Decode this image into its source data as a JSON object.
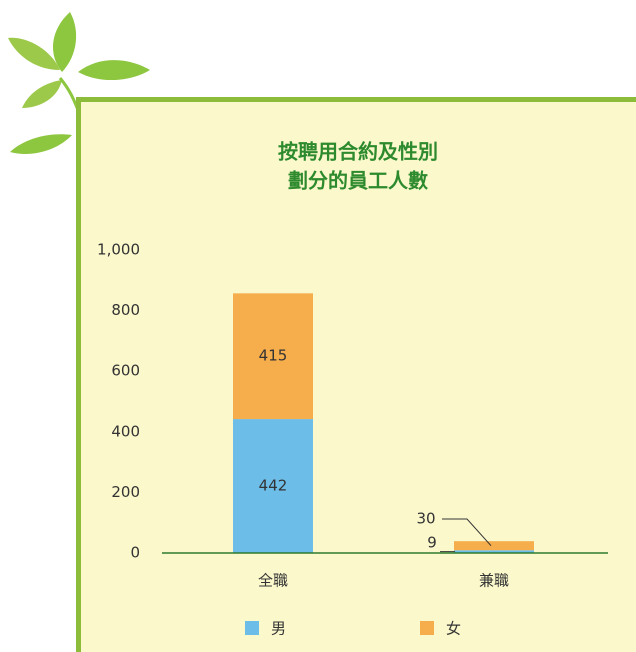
{
  "chart_data": {
    "type": "stacked_bar",
    "title": [
      "按聘用合約及性別",
      "劃分的員工人數"
    ],
    "categories": [
      "全職",
      "兼職"
    ],
    "series": [
      {
        "name": "男",
        "color": "#6dbde9",
        "values": [
          442,
          9
        ]
      },
      {
        "name": "女",
        "color": "#f6ad4c",
        "values": [
          415,
          30
        ]
      }
    ],
    "ylim": [
      0,
      1000
    ],
    "yticks": [
      0,
      200,
      400,
      600,
      800,
      {
        "value": 1000,
        "label": "1,000"
      }
    ],
    "grid": false,
    "legend": "bottom"
  }
}
